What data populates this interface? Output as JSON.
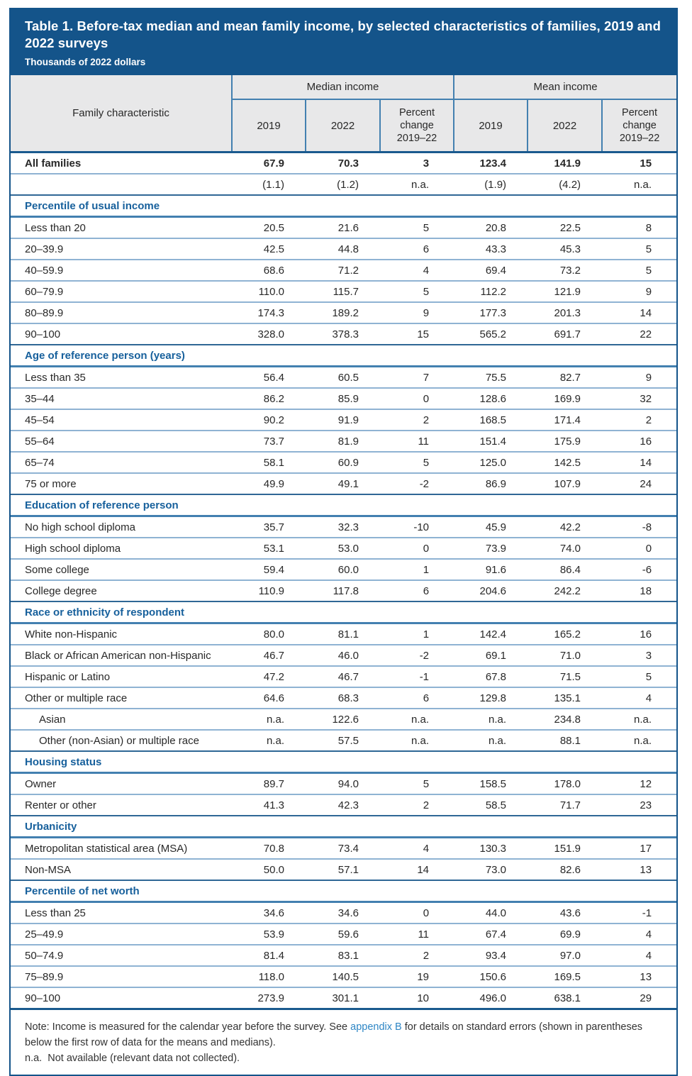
{
  "title": "Table 1. Before-tax median and mean family income, by selected characteristics of families, 2019 and 2022 surveys",
  "subtitle": "Thousands of 2022 dollars",
  "colors": {
    "header_navy": "#14548A",
    "section_blue": "#17609C",
    "row_line_blue": "#8FB3D3",
    "header_gray": "#E8E8E9",
    "link_blue": "#2E86C5"
  },
  "table": {
    "corner_header": "Family characteristic",
    "group_headers": [
      "Median income",
      "Mean income"
    ],
    "sub_headers": [
      "2019",
      "2022",
      "Percent change 2019–22",
      "2019",
      "2022",
      "Percent change 2019–22"
    ],
    "rows": [
      {
        "type": "data",
        "bold": true,
        "label": "All families",
        "values": [
          "67.9",
          "70.3",
          "3",
          "123.4",
          "141.9",
          "15"
        ]
      },
      {
        "type": "se",
        "label": "",
        "values": [
          "(1.1)",
          "(1.2)",
          "n.a.",
          "(1.9)",
          "(4.2)",
          "n.a."
        ]
      },
      {
        "type": "section",
        "label": "Percentile of usual income"
      },
      {
        "type": "data",
        "label": "Less than 20",
        "values": [
          "20.5",
          "21.6",
          "5",
          "20.8",
          "22.5",
          "8"
        ]
      },
      {
        "type": "data",
        "label": "20–39.9",
        "values": [
          "42.5",
          "44.8",
          "6",
          "43.3",
          "45.3",
          "5"
        ]
      },
      {
        "type": "data",
        "label": "40–59.9",
        "values": [
          "68.6",
          "71.2",
          "4",
          "69.4",
          "73.2",
          "5"
        ]
      },
      {
        "type": "data",
        "label": "60–79.9",
        "values": [
          "110.0",
          "115.7",
          "5",
          "112.2",
          "121.9",
          "9"
        ]
      },
      {
        "type": "data",
        "label": "80–89.9",
        "values": [
          "174.3",
          "189.2",
          "9",
          "177.3",
          "201.3",
          "14"
        ]
      },
      {
        "type": "data",
        "label": "90–100",
        "values": [
          "328.0",
          "378.3",
          "15",
          "565.2",
          "691.7",
          "22"
        ]
      },
      {
        "type": "section",
        "label": "Age of reference person (years)"
      },
      {
        "type": "data",
        "label": "Less than 35",
        "values": [
          "56.4",
          "60.5",
          "7",
          "75.5",
          "82.7",
          "9"
        ]
      },
      {
        "type": "data",
        "label": "35–44",
        "values": [
          "86.2",
          "85.9",
          "0",
          "128.6",
          "169.9",
          "32"
        ]
      },
      {
        "type": "data",
        "label": "45–54",
        "values": [
          "90.2",
          "91.9",
          "2",
          "168.5",
          "171.4",
          "2"
        ]
      },
      {
        "type": "data",
        "label": "55–64",
        "values": [
          "73.7",
          "81.9",
          "11",
          "151.4",
          "175.9",
          "16"
        ]
      },
      {
        "type": "data",
        "label": "65–74",
        "values": [
          "58.1",
          "60.9",
          "5",
          "125.0",
          "142.5",
          "14"
        ]
      },
      {
        "type": "data",
        "label": "75 or more",
        "values": [
          "49.9",
          "49.1",
          "-2",
          "86.9",
          "107.9",
          "24"
        ]
      },
      {
        "type": "section",
        "label": "Education of reference person"
      },
      {
        "type": "data",
        "label": "No high school diploma",
        "values": [
          "35.7",
          "32.3",
          "-10",
          "45.9",
          "42.2",
          "-8"
        ]
      },
      {
        "type": "data",
        "label": "High school diploma",
        "values": [
          "53.1",
          "53.0",
          "0",
          "73.9",
          "74.0",
          "0"
        ]
      },
      {
        "type": "data",
        "label": "Some college",
        "values": [
          "59.4",
          "60.0",
          "1",
          "91.6",
          "86.4",
          "-6"
        ]
      },
      {
        "type": "data",
        "label": "College degree",
        "values": [
          "110.9",
          "117.8",
          "6",
          "204.6",
          "242.2",
          "18"
        ]
      },
      {
        "type": "section",
        "label": "Race or ethnicity of respondent"
      },
      {
        "type": "data",
        "label": "White non-Hispanic",
        "values": [
          "80.0",
          "81.1",
          "1",
          "142.4",
          "165.2",
          "16"
        ]
      },
      {
        "type": "data",
        "label": "Black or African American non-Hispanic",
        "values": [
          "46.7",
          "46.0",
          "-2",
          "69.1",
          "71.0",
          "3"
        ]
      },
      {
        "type": "data",
        "label": "Hispanic or Latino",
        "values": [
          "47.2",
          "46.7",
          "-1",
          "67.8",
          "71.5",
          "5"
        ]
      },
      {
        "type": "data",
        "label": "Other or multiple race",
        "values": [
          "64.6",
          "68.3",
          "6",
          "129.8",
          "135.1",
          "4"
        ]
      },
      {
        "type": "data",
        "indent": true,
        "label": "Asian",
        "values": [
          "n.a.",
          "122.6",
          "n.a.",
          "n.a.",
          "234.8",
          "n.a."
        ]
      },
      {
        "type": "data",
        "indent": true,
        "label": "Other (non-Asian) or multiple race",
        "values": [
          "n.a.",
          "57.5",
          "n.a.",
          "n.a.",
          "88.1",
          "n.a."
        ]
      },
      {
        "type": "section",
        "label": "Housing status"
      },
      {
        "type": "data",
        "label": "Owner",
        "values": [
          "89.7",
          "94.0",
          "5",
          "158.5",
          "178.0",
          "12"
        ]
      },
      {
        "type": "data",
        "label": "Renter or other",
        "values": [
          "41.3",
          "42.3",
          "2",
          "58.5",
          "71.7",
          "23"
        ]
      },
      {
        "type": "section",
        "label": "Urbanicity"
      },
      {
        "type": "data",
        "label": "Metropolitan statistical area (MSA)",
        "values": [
          "70.8",
          "73.4",
          "4",
          "130.3",
          "151.9",
          "17"
        ]
      },
      {
        "type": "data",
        "label": "Non-MSA",
        "values": [
          "50.0",
          "57.1",
          "14",
          "73.0",
          "82.6",
          "13"
        ]
      },
      {
        "type": "section",
        "label": "Percentile of net worth"
      },
      {
        "type": "data",
        "label": "Less than 25",
        "values": [
          "34.6",
          "34.6",
          "0",
          "44.0",
          "43.6",
          "-1"
        ]
      },
      {
        "type": "data",
        "label": "25–49.9",
        "values": [
          "53.9",
          "59.6",
          "11",
          "67.4",
          "69.9",
          "4"
        ]
      },
      {
        "type": "data",
        "label": "50–74.9",
        "values": [
          "81.4",
          "83.1",
          "2",
          "93.4",
          "97.0",
          "4"
        ]
      },
      {
        "type": "data",
        "label": "75–89.9",
        "values": [
          "118.0",
          "140.5",
          "19",
          "150.6",
          "169.5",
          "13"
        ]
      },
      {
        "type": "data",
        "label": "90–100",
        "values": [
          "273.9",
          "301.1",
          "10",
          "496.0",
          "638.1",
          "29"
        ]
      }
    ]
  },
  "note": {
    "pre": "Note: Income is measured for the calendar year before the survey. See ",
    "link": "appendix B",
    "post": " for details on standard errors (shown in parentheses below the first row of data for the means and medians).",
    "na": "n.a.  Not available (relevant data not collected)."
  }
}
